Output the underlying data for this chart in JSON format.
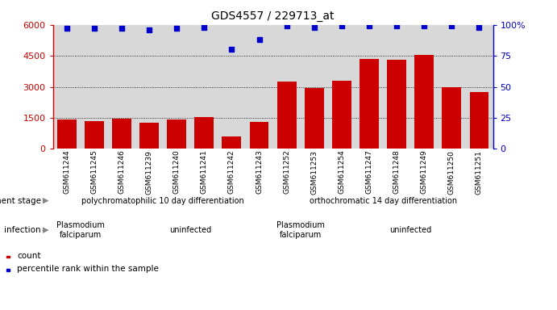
{
  "title": "GDS4557 / 229713_at",
  "samples": [
    "GSM611244",
    "GSM611245",
    "GSM611246",
    "GSM611239",
    "GSM611240",
    "GSM611241",
    "GSM611242",
    "GSM611243",
    "GSM611252",
    "GSM611253",
    "GSM611254",
    "GSM611247",
    "GSM611248",
    "GSM611249",
    "GSM611250",
    "GSM611251"
  ],
  "counts": [
    1420,
    1350,
    1440,
    1280,
    1400,
    1530,
    600,
    1300,
    3250,
    2950,
    3300,
    4350,
    4300,
    4550,
    2980,
    2750
  ],
  "percentiles": [
    97,
    97,
    97,
    96,
    97,
    98,
    80,
    88,
    99,
    98,
    99,
    99,
    99,
    99,
    99,
    98
  ],
  "bar_color": "#cc0000",
  "dot_color": "#0000cc",
  "ylim_left": [
    0,
    6000
  ],
  "ylim_right": [
    0,
    100
  ],
  "yticks_left": [
    0,
    1500,
    3000,
    4500,
    6000
  ],
  "yticks_right": [
    0,
    25,
    50,
    75,
    100
  ],
  "background_color": "#ffffff",
  "axis_bg": "#d8d8d8",
  "dev_stage_groups": [
    {
      "label": "polychromatophilic 10 day differentiation",
      "start": 0,
      "end": 7,
      "color": "#66dd66"
    },
    {
      "label": "orthochromatic 14 day differentiation",
      "start": 8,
      "end": 15,
      "color": "#44cc44"
    }
  ],
  "infection_groups": [
    {
      "label": "Plasmodium\nfalciparum",
      "start": 0,
      "end": 1,
      "color": "#dd88dd"
    },
    {
      "label": "uninfected",
      "start": 2,
      "end": 7,
      "color": "#ee66ee"
    },
    {
      "label": "Plasmodium\nfalciparum",
      "start": 8,
      "end": 9,
      "color": "#dd88dd"
    },
    {
      "label": "uninfected",
      "start": 10,
      "end": 15,
      "color": "#ee66ee"
    }
  ],
  "legend_items": [
    {
      "color": "#cc0000",
      "label": "count"
    },
    {
      "color": "#0000cc",
      "label": "percentile rank within the sample"
    }
  ]
}
